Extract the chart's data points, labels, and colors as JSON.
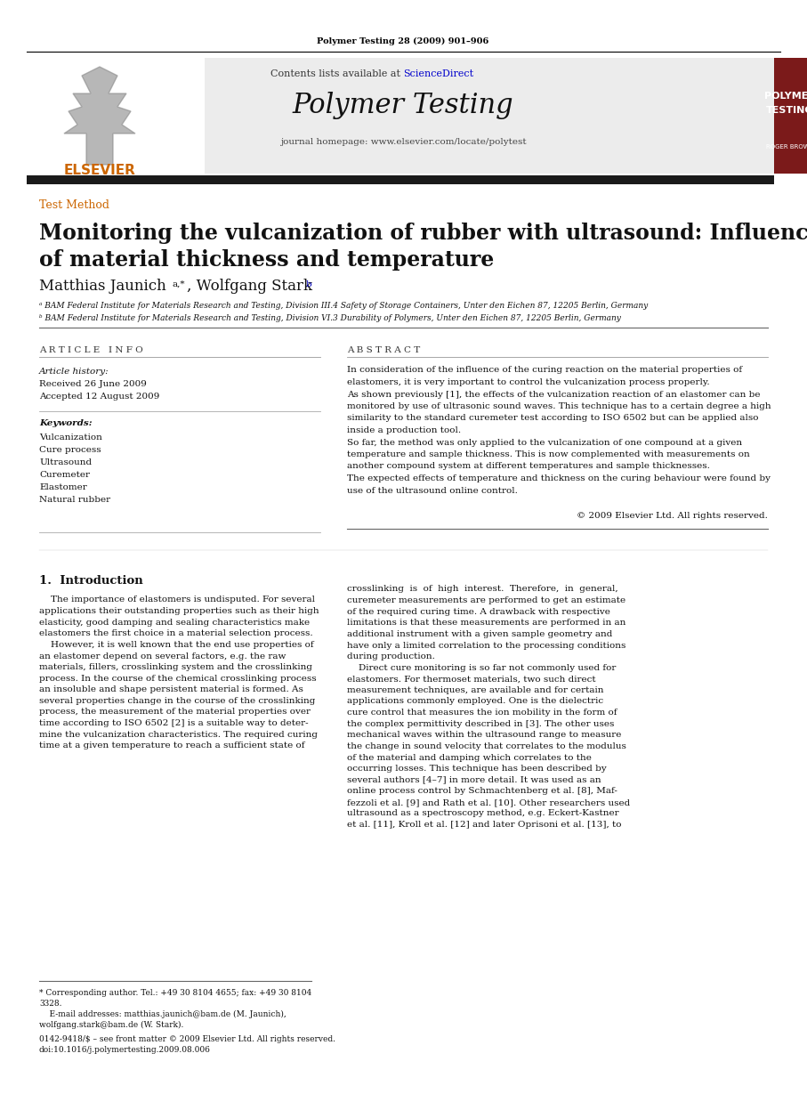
{
  "page_bg": "#ffffff",
  "header_journal_ref": "Polymer Testing 28 (2009) 901–906",
  "header_bg": "#ececec",
  "header_contents": "Contents lists available at ",
  "header_sciencedirect": "ScienceDirect",
  "header_sciencedirect_color": "#0000cc",
  "journal_title": "Polymer Testing",
  "journal_homepage": "journal homepage: www.elsevier.com/locate/polytest",
  "badge_bg": "#7b1a1a",
  "badge_line1": "POLYMER",
  "badge_line2": "TESTING",
  "badge_line3": "ROGER BROWN",
  "badge_text_color": "#ffffff",
  "section_label": "Test Method",
  "section_label_color": "#cc6600",
  "article_title_line1": "Monitoring the vulcanization of rubber with ultrasound: Influence",
  "article_title_line2": "of material thickness and temperature",
  "authors": "Matthias Jaunich",
  "authors_superscript": "a,*",
  "authors2": ", Wolfgang Stark",
  "authors2_superscript": "b",
  "affiliation_a": "ᵃ BAM Federal Institute for Materials Research and Testing, Division III.4 Safety of Storage Containers, Unter den Eichen 87, 12205 Berlin, Germany",
  "affiliation_b": "ᵇ BAM Federal Institute for Materials Research and Testing, Division VI.3 Durability of Polymers, Unter den Eichen 87, 12205 Berlin, Germany",
  "article_info_title_spaced": "A R T I C L E   I N F O",
  "abstract_title_spaced": "A B S T R A C T",
  "article_history_label": "Article history:",
  "received": "Received 26 June 2009",
  "accepted": "Accepted 12 August 2009",
  "keywords_label": "Keywords:",
  "keywords": [
    "Vulcanization",
    "Cure process",
    "Ultrasound",
    "Curemeter",
    "Elastomer",
    "Natural rubber"
  ],
  "abstract_text": "In consideration of the influence of the curing reaction on the material properties of\nelastomers, it is very important to control the vulcanization process properly.\nAs shown previously [1], the effects of the vulcanization reaction of an elastomer can be\nmonitored by use of ultrasonic sound waves. This technique has to a certain degree a high\nsimilarity to the standard curemeter test according to ISO 6502 but can be applied also\ninside a production tool.\nSo far, the method was only applied to the vulcanization of one compound at a given\ntemperature and sample thickness. This is now complemented with measurements on\nanother compound system at different temperatures and sample thicknesses.\nThe expected effects of temperature and thickness on the curing behaviour were found by\nuse of the ultrasound online control.",
  "copyright": "© 2009 Elsevier Ltd. All rights reserved.",
  "section1_title": "1.  Introduction",
  "intro_col1_para1": "    The importance of elastomers is undisputed. For several\napplications their outstanding properties such as their high\nelasticity, good damping and sealing characteristics make\nelastomers the first choice in a material selection process.\n    However, it is well known that the end use properties of\nan elastomer depend on several factors, e.g. the raw\nmaterials, fillers, crosslinking system and the crosslinking\nprocess. In the course of the chemical crosslinking process\nan insoluble and shape persistent material is formed. As\nseveral properties change in the course of the crosslinking\nprocess, the measurement of the material properties over\ntime according to ISO 6502 [2] is a suitable way to deter-\nmine the vulcanization characteristics. The required curing\ntime at a given temperature to reach a sufficient state of",
  "intro_col2_para1": "crosslinking  is  of  high  interest.  Therefore,  in  general,\ncuremeter measurements are performed to get an estimate\nof the required curing time. A drawback with respective\nlimitations is that these measurements are performed in an\nadditional instrument with a given sample geometry and\nhave only a limited correlation to the processing conditions\nduring production.\n    Direct cure monitoring is so far not commonly used for\nelastomers. For thermoset materials, two such direct\nmeasurement techniques, are available and for certain\napplications commonly employed. One is the dielectric\ncure control that measures the ion mobility in the form of\nthe complex permittivity described in [3]. The other uses\nmechanical waves within the ultrasound range to measure\nthe change in sound velocity that correlates to the modulus\nof the material and damping which correlates to the\noccurring losses. This technique has been described by\nseveral authors [4–7] in more detail. It was used as an\nonline process control by Schmachtenberg et al. [8], Maf-\nfezzoli et al. [9] and Rath et al. [10]. Other researchers used\nultrasound as a spectroscopy method, e.g. Eckert-Kastner\net al. [11], Kroll et al. [12] and later Oprisoni et al. [13], to",
  "footnote_star": "* Corresponding author. Tel.: +49 30 8104 4655; fax: +49 30 8104\n3328.\n    E-mail addresses: matthias.jaunich@bam.de (M. Jaunich),\nwolfgang.stark@bam.de (W. Stark).",
  "footnote_bottom": "0142-9418/$ – see front matter © 2009 Elsevier Ltd. All rights reserved.\ndoi:10.1016/j.polymertesting.2009.08.006",
  "elsevier_color": "#cc6600",
  "top_separator_color": "#000000",
  "thick_separator_color": "#1a1a1a",
  "thin_separator_color": "#888888"
}
